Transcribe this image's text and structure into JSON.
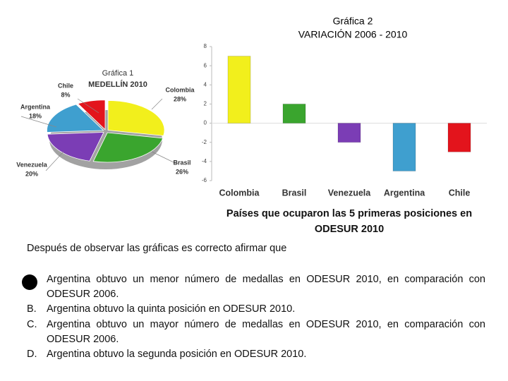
{
  "chart_data": [
    {
      "type": "pie",
      "title": "Gráfica 1",
      "subtitle": "MEDELLÍN 2010",
      "categories": [
        "Colombia",
        "Brasil",
        "Venezuela",
        "Argentina",
        "Chile"
      ],
      "values": [
        28,
        26,
        20,
        18,
        8
      ],
      "value_labels": [
        "28%",
        "26%",
        "20%",
        "18%",
        "8%"
      ],
      "colors": [
        "#f2ef1c",
        "#3aa52e",
        "#7b3db5",
        "#3f9fcf",
        "#e3141c"
      ]
    },
    {
      "type": "bar",
      "title": "Gráfica 2",
      "subtitle": "VARIACIÓN 2006 - 2010",
      "categories": [
        "Colombia",
        "Brasil",
        "Venezuela",
        "Argentina",
        "Chile"
      ],
      "values": [
        7,
        2,
        -2,
        -5,
        -3
      ],
      "colors": [
        "#f2ef1c",
        "#3aa52e",
        "#7b3db5",
        "#3f9fcf",
        "#e3141c"
      ],
      "ylim": [
        -6,
        8
      ],
      "yticks": [
        -6,
        -4,
        -2,
        0,
        2,
        4,
        6,
        8
      ],
      "caption": "Países que ocuparon las 5 primeras posiciones en ODESUR 2010"
    }
  ],
  "question": "Después de observar las gráficas es correcto afirmar que",
  "options": [
    {
      "text": "Argentina obtuvo un menor número de medallas en ODESUR 2010, en comparación con ODESUR 2006."
    },
    {
      "letter": "B.",
      "text": "Argentina obtuvo la quinta posición en ODESUR 2010."
    },
    {
      "letter": "C.",
      "text": "Argentina obtuvo un mayor número de medallas en ODESUR 2010, en comparación con ODESUR 2006."
    },
    {
      "letter": "D.",
      "text": "Argentina obtuvo la segunda posición en ODESUR 2010."
    }
  ]
}
